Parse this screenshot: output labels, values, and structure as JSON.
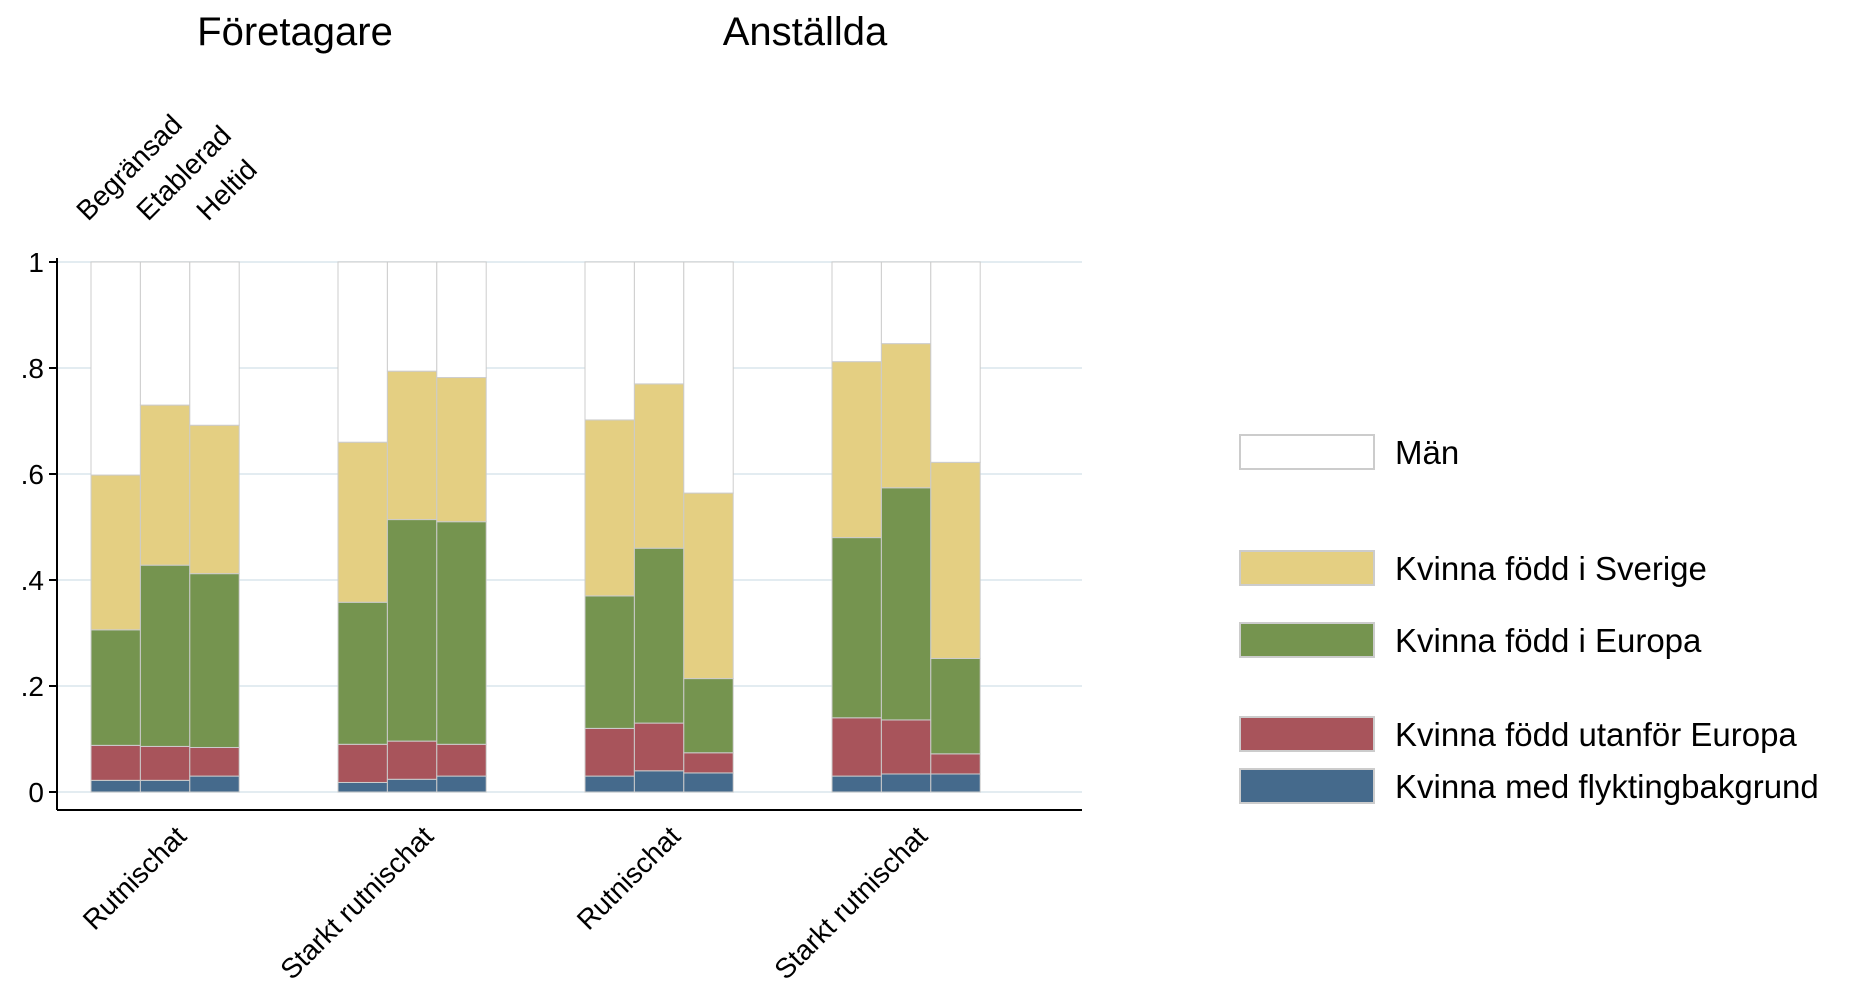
{
  "chart_data": {
    "type": "bar",
    "stacked": true,
    "panels": [
      {
        "title": "Företagare",
        "groups": [
          "Rutnischat",
          "Starkt rutnischat"
        ]
      },
      {
        "title": "Anställda",
        "groups": [
          "Rutnischat",
          "Starkt rutnischat"
        ]
      }
    ],
    "bar_labels": [
      "Begränsad",
      "Etablerad",
      "Heltid"
    ],
    "yticks": [
      {
        "value": 0,
        "label": "0"
      },
      {
        "value": 0.2,
        "label": ".2"
      },
      {
        "value": 0.4,
        "label": ".4"
      },
      {
        "value": 0.6,
        "label": ".6"
      },
      {
        "value": 0.8,
        "label": ".8"
      },
      {
        "value": 1,
        "label": "1"
      }
    ],
    "ylim": [
      0,
      1
    ],
    "grid": true,
    "legend_position": "right",
    "series": [
      {
        "name": "Kvinna med flyktingbakgrund",
        "color": "#456a8c",
        "values": [
          0.022,
          0.022,
          0.03,
          0.018,
          0.024,
          0.03,
          0.03,
          0.04,
          0.036,
          0.03,
          0.034,
          0.034
        ]
      },
      {
        "name": "Kvinna född utanför Europa",
        "color": "#a8545b",
        "values": [
          0.066,
          0.064,
          0.054,
          0.072,
          0.072,
          0.06,
          0.09,
          0.09,
          0.038,
          0.11,
          0.102,
          0.038
        ]
      },
      {
        "name": "Kvinna född i Europa",
        "color": "#75944f",
        "values": [
          0.218,
          0.342,
          0.328,
          0.268,
          0.418,
          0.42,
          0.25,
          0.33,
          0.14,
          0.34,
          0.438,
          0.18
        ]
      },
      {
        "name": "Kvinna född i Sverige",
        "color": "#e4cf82",
        "values": [
          0.292,
          0.302,
          0.28,
          0.302,
          0.28,
          0.272,
          0.332,
          0.31,
          0.35,
          0.332,
          0.272,
          0.37
        ]
      },
      {
        "name": "Män",
        "color": "#ffffff",
        "values": [
          0.402,
          0.27,
          0.308,
          0.34,
          0.206,
          0.218,
          0.298,
          0.23,
          0.436,
          0.188,
          0.154,
          0.378
        ]
      }
    ],
    "legend_order": [
      "Män",
      "Kvinna född i Sverige",
      "Kvinna född i Europa",
      "Kvinna född utanför Europa",
      "Kvinna med flyktingbakgrund"
    ]
  }
}
